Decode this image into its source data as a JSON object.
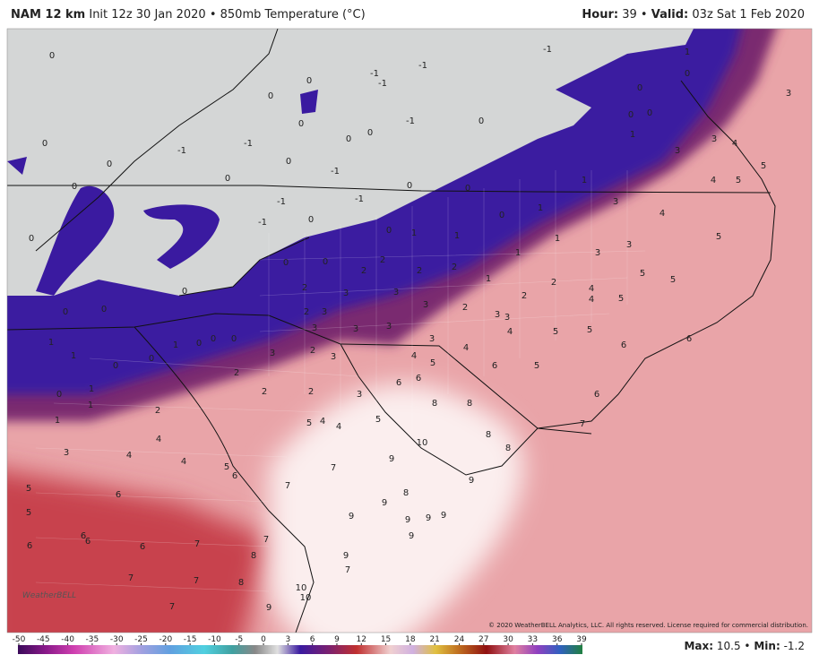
{
  "header": {
    "model": "NAM 12 km",
    "info": "Init 12z 30 Jan 2020 • 850mb Temperature (°C)",
    "hour_label": "Hour:",
    "hour": "39 •",
    "valid_label": "Valid:",
    "valid": "03z Sat 1 Feb 2020"
  },
  "footer": {
    "max_label": "Max:",
    "max": "10.5 •",
    "min_label": "Min:",
    "min": "-1.2"
  },
  "copyright": "© 2020 WeatherBELL Analytics, LLC. All rights reserved. License required for commercial distribution.",
  "logo": "WeatherBELL",
  "colorbar": {
    "ticks": [
      -50,
      -45,
      -40,
      -35,
      -30,
      -25,
      -20,
      -15,
      -10,
      -5,
      0,
      3,
      6,
      9,
      12,
      15,
      18,
      21,
      24,
      27,
      30,
      33,
      36,
      39
    ]
  },
  "map_values": [
    0,
    0,
    0,
    -1,
    -1,
    -1,
    0,
    -1,
    -1,
    0,
    0,
    0,
    -1,
    0,
    0,
    -1,
    0,
    0,
    -1,
    -1,
    0,
    0,
    -1,
    0,
    0,
    0,
    -1,
    1,
    0,
    0,
    0,
    0,
    1,
    3,
    3,
    4,
    3,
    5,
    4,
    5,
    0,
    1,
    0,
    1,
    3,
    4,
    5,
    0,
    1,
    1,
    1,
    1,
    3,
    3,
    2,
    2,
    2,
    2,
    0,
    0,
    5,
    5,
    1,
    2,
    2,
    4,
    4,
    5,
    2,
    3,
    3,
    3,
    2,
    3,
    3,
    0,
    0,
    2,
    3,
    3,
    3,
    3,
    3,
    4,
    4,
    5,
    5,
    6,
    6,
    1,
    1,
    0,
    0,
    0,
    1,
    0,
    0,
    2,
    3,
    3,
    4,
    5,
    6,
    5,
    0,
    1,
    1,
    1,
    2,
    2,
    2,
    2,
    3,
    6,
    6,
    8,
    8,
    6,
    7,
    5,
    4,
    4,
    5,
    8,
    8,
    10,
    4,
    4,
    3,
    4,
    5,
    6,
    7,
    7,
    9,
    9,
    8,
    5,
    6,
    5,
    9,
    9,
    9,
    9,
    9,
    9,
    6,
    6,
    6,
    6,
    7,
    7,
    8,
    9,
    7,
    7,
    7,
    8,
    10,
    10,
    7,
    9
  ]
}
